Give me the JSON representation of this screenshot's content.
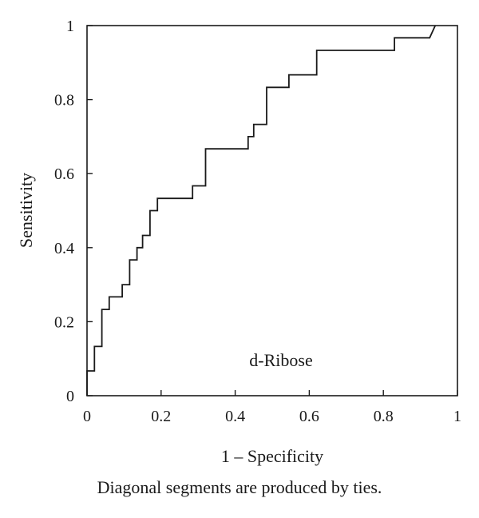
{
  "chart_data": {
    "type": "line",
    "step": true,
    "series": [
      {
        "name": "d-Ribose",
        "x": [
          0,
          0,
          0.02,
          0.02,
          0.04,
          0.04,
          0.06,
          0.06,
          0.095,
          0.095,
          0.115,
          0.115,
          0.135,
          0.135,
          0.15,
          0.15,
          0.17,
          0.17,
          0.19,
          0.19,
          0.285,
          0.285,
          0.32,
          0.32,
          0.435,
          0.435,
          0.45,
          0.45,
          0.485,
          0.485,
          0.545,
          0.545,
          0.62,
          0.62,
          0.83,
          0.83,
          0.925,
          0.94
        ],
        "y": [
          0,
          0.067,
          0.067,
          0.133,
          0.133,
          0.233,
          0.233,
          0.267,
          0.267,
          0.3,
          0.3,
          0.367,
          0.367,
          0.4,
          0.4,
          0.433,
          0.433,
          0.5,
          0.5,
          0.533,
          0.533,
          0.567,
          0.567,
          0.667,
          0.667,
          0.7,
          0.7,
          0.733,
          0.733,
          0.833,
          0.833,
          0.867,
          0.867,
          0.933,
          0.933,
          0.967,
          0.967,
          1.0
        ]
      }
    ],
    "annotation": "d-Ribose",
    "xlabel": "1 – Specificity",
    "ylabel": "Sensitivity",
    "xlim": [
      0,
      1
    ],
    "ylim": [
      0,
      1
    ],
    "xticks": [
      0,
      0.2,
      0.4,
      0.6,
      0.8,
      1
    ],
    "yticks": [
      0,
      0.2,
      0.4,
      0.6,
      0.8,
      1
    ],
    "xtick_labels": [
      "0",
      "0.2",
      "0.4",
      "0.6",
      "0.8",
      "1"
    ],
    "ytick_labels": [
      "0",
      "0.2",
      "0.4",
      "0.6",
      "0.8",
      "1"
    ],
    "grid": false,
    "line_color": "#1a1a1a"
  },
  "caption": "Diagonal segments are produced by ties."
}
